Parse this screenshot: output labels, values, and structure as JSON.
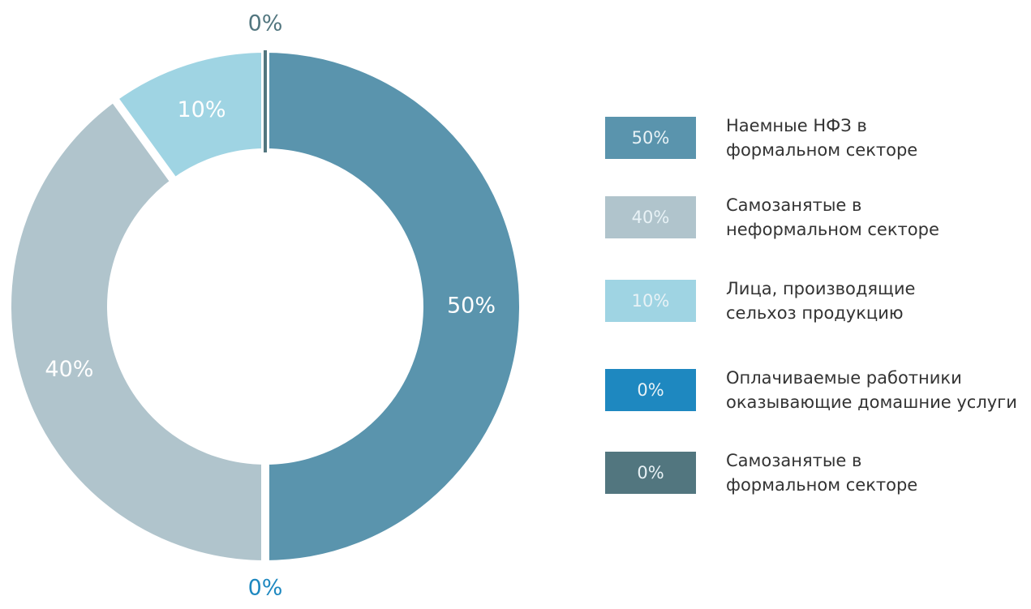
{
  "chart_data": {
    "type": "pie",
    "donut": true,
    "categories": [
      "Наемные НФЗ в\nформальном секторе",
      "Самозанятые в\nнеформальном секторе",
      "Лица, производящие\nсельхоз продукцию",
      "Оплачиваемые работники\nоказывающие домашние услуги",
      "Самозанятые в\nформальном секторе"
    ],
    "values": [
      50,
      40,
      10,
      0,
      0
    ],
    "value_labels": [
      "50%",
      "40%",
      "10%",
      "0%",
      "0%"
    ],
    "colors": [
      "#5a94ad",
      "#b0c4cc",
      "#9fd4e3",
      "#1e88c0",
      "#52767f"
    ],
    "legend": "right"
  }
}
